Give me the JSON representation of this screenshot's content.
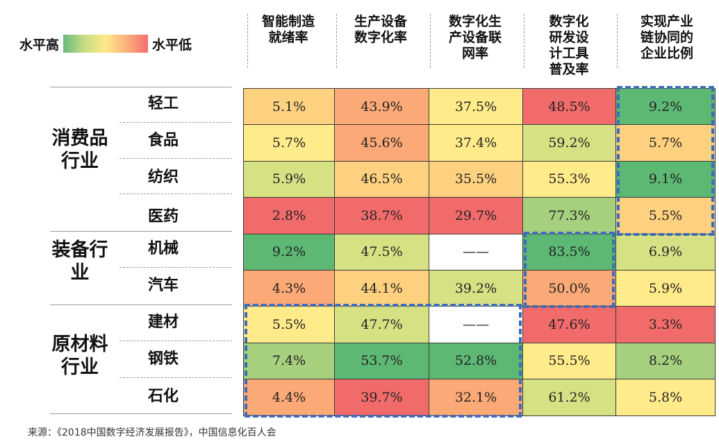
{
  "legend": {
    "high_label": "水平高",
    "low_label": "水平低"
  },
  "colors": {
    "green": "#5db874",
    "light_green": "#a7d07e",
    "yellow_green": "#d6e184",
    "light_yellow": "#ffeb8a",
    "pale_orange": "#fdd17f",
    "orange": "#fba976",
    "red": "#f26b6b",
    "empty": "#ffffff",
    "highlight_border": "#3d6cba"
  },
  "chart_data": {
    "type": "table",
    "title": "",
    "columns": [
      "智能制造\n就绪率",
      "生产设备\n数字化率",
      "数字化生\n产设备联\n网率",
      "数字化\n研发设\n计工具\n普及率",
      "实现产业\n链协同的\n企业比例"
    ],
    "groups": [
      {
        "name": "消费品\n行业",
        "rows": [
          "轻工",
          "食品",
          "纺织",
          "医药"
        ]
      },
      {
        "name": "装备行\n业",
        "rows": [
          "机械",
          "汽车"
        ]
      },
      {
        "name": "原材料\n行业",
        "rows": [
          "建材",
          "钢铁",
          "石化"
        ]
      }
    ],
    "rows": [
      "轻工",
      "食品",
      "纺织",
      "医药",
      "机械",
      "汽车",
      "建材",
      "钢铁",
      "石化"
    ],
    "values": [
      [
        "5.1%",
        "43.9%",
        "37.5%",
        "48.5%",
        "9.2%"
      ],
      [
        "5.7%",
        "45.6%",
        "37.4%",
        "59.2%",
        "5.7%"
      ],
      [
        "5.9%",
        "46.5%",
        "35.5%",
        "55.3%",
        "9.1%"
      ],
      [
        "2.8%",
        "38.7%",
        "29.7%",
        "77.3%",
        "5.5%"
      ],
      [
        "9.2%",
        "47.5%",
        "——",
        "83.5%",
        "6.9%"
      ],
      [
        "4.3%",
        "44.1%",
        "39.2%",
        "50.0%",
        "5.9%"
      ],
      [
        "5.5%",
        "47.7%",
        "——",
        "47.6%",
        "3.3%"
      ],
      [
        "7.4%",
        "53.7%",
        "52.8%",
        "55.5%",
        "8.2%"
      ],
      [
        "4.4%",
        "39.7%",
        "32.1%",
        "61.2%",
        "5.8%"
      ]
    ],
    "cell_colors": [
      [
        "pale_orange",
        "orange",
        "light_yellow",
        "red",
        "green"
      ],
      [
        "light_yellow",
        "orange",
        "light_yellow",
        "yellow_green",
        "pale_orange"
      ],
      [
        "yellow_green",
        "pale_orange",
        "pale_orange",
        "light_yellow",
        "green"
      ],
      [
        "red",
        "red",
        "red",
        "light_green",
        "pale_orange"
      ],
      [
        "green",
        "yellow_green",
        "empty",
        "green",
        "yellow_green"
      ],
      [
        "orange",
        "pale_orange",
        "yellow_green",
        "orange",
        "light_yellow"
      ],
      [
        "light_yellow",
        "yellow_green",
        "empty",
        "red",
        "red"
      ],
      [
        "light_green",
        "green",
        "green",
        "light_yellow",
        "light_green"
      ],
      [
        "orange",
        "red",
        "orange",
        "yellow_green",
        "light_yellow"
      ]
    ],
    "highlights": [
      {
        "label": "consumer-industrial-chain",
        "rows": [
          0,
          3
        ],
        "cols": [
          4,
          4
        ]
      },
      {
        "label": "equipment-rd-tools",
        "rows": [
          4,
          5
        ],
        "cols": [
          3,
          3
        ]
      },
      {
        "label": "raw-materials-production",
        "rows": [
          6,
          8
        ],
        "cols": [
          0,
          2
        ]
      }
    ]
  },
  "source_note": "来源：《2018中国数字经济发展报告》，中国信息化百人会"
}
